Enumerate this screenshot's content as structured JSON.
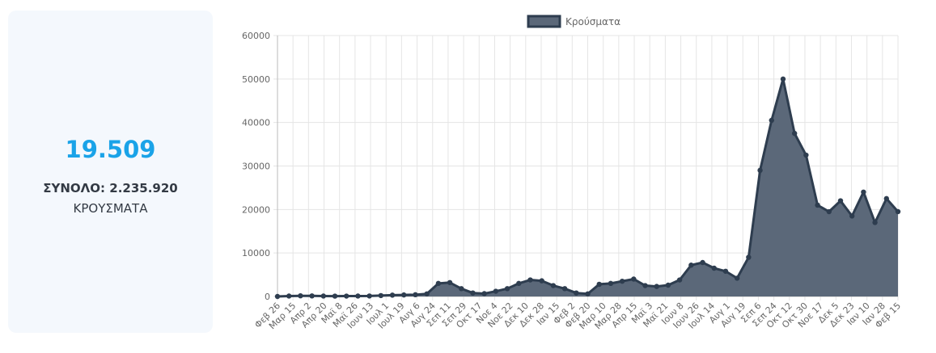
{
  "summary": {
    "today_value": "19.509",
    "total_label": "ΣΥΝΟΛΟ:",
    "total_value": "2.235.920",
    "unit_label": "ΚΡΟΥΣΜΑΤΑ"
  },
  "colors": {
    "accent": "#1aa3e8",
    "series_fill": "#5b6879",
    "series_line": "#2e3d4f",
    "card_background": "#f4f8fd",
    "grid": "#e5e5e5"
  },
  "chart_data": {
    "type": "area",
    "title": "",
    "xlabel": "",
    "ylabel": "",
    "ylim": [
      0,
      60000
    ],
    "y_ticks": [
      0,
      10000,
      20000,
      30000,
      40000,
      50000,
      60000
    ],
    "grid": true,
    "legend_position": "top-center",
    "x_tick_labels": [
      "Φεβ 26",
      "Μαρ 15",
      "Απρ 2",
      "Απρ 20",
      "Μαϊ 8",
      "Μαϊ 26",
      "Ιουν 13",
      "Ιουλ 1",
      "Ιουλ 19",
      "Αυγ 6",
      "Αυγ 24",
      "Σεπ 11",
      "Σεπ 29",
      "Οκτ 17",
      "Νοε 4",
      "Νοε 22",
      "Δεκ 10",
      "Δεκ 28",
      "Ιαν 15",
      "Φεβ 2",
      "Φεβ 20",
      "Μαρ 10",
      "Μαρ 28",
      "Απρ 15",
      "Μαϊ 3",
      "Μαϊ 21",
      "Ιουν 8",
      "Ιουν 26",
      "Ιουλ 14",
      "Αυγ 1",
      "Αυγ 19",
      "Σεπ 6",
      "Σεπ 24",
      "Οκτ 12",
      "Οκτ 30",
      "Νοε 17",
      "Δεκ 5",
      "Δεκ 23",
      "Ιαν 10",
      "Ιαν 28",
      "Φεβ 15"
    ],
    "series": [
      {
        "name": "Κρούσματα",
        "values": [
          0,
          100,
          150,
          130,
          100,
          80,
          90,
          100,
          110,
          200,
          300,
          350,
          400,
          600,
          3000,
          3200,
          1800,
          800,
          650,
          1200,
          1800,
          3000,
          3800,
          3600,
          2500,
          1800,
          800,
          600,
          2800,
          3000,
          3500,
          4000,
          2500,
          2300,
          2600,
          3800,
          7200,
          7800,
          6500,
          5800,
          4200,
          9000,
          29000,
          40500,
          50000,
          37500,
          32500,
          21000,
          19500,
          22000,
          18500,
          24000,
          17000,
          22500,
          19509
        ]
      }
    ]
  }
}
